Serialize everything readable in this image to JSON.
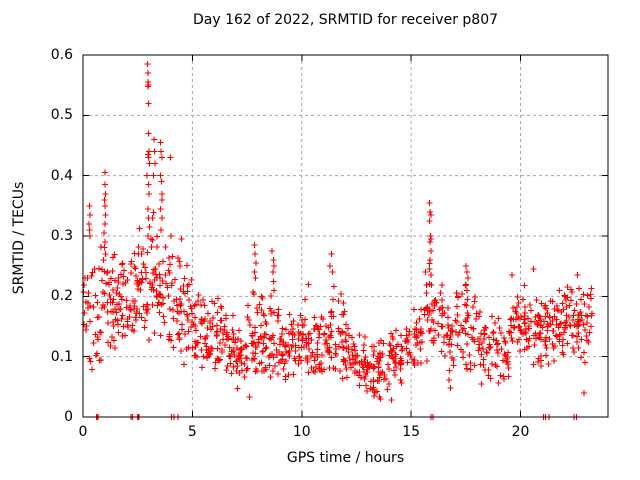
{
  "title": "Day 162 of 2022, SRMTID for receiver p807",
  "chart_data": {
    "type": "scatter",
    "title": "Day 162 of 2022, SRMTID for receiver p807",
    "xlabel": "GPS time / hours",
    "ylabel": "SRMTID / TECUs",
    "xlim": [
      0,
      24
    ],
    "ylim": [
      0,
      0.6
    ],
    "x_ticks": [
      0,
      5,
      10,
      15,
      20
    ],
    "x_tick_labels": [
      "0",
      "5",
      "10",
      "15",
      "20"
    ],
    "y_ticks": [
      0,
      0.1,
      0.2,
      0.3,
      0.4,
      0.5,
      0.6
    ],
    "y_tick_labels": [
      "0",
      "0.1",
      "0.2",
      "0.3",
      "0.4",
      "0.5",
      "0.6"
    ],
    "grid": true,
    "legend": "none",
    "marker": "plus",
    "marker_color": "#ff0000",
    "grid_color": "#a6a6a6",
    "axis_color": "#000000",
    "series_name": "SRMTID",
    "seed": 20220162,
    "density_bins_format": [
      "x_start_hours",
      "x_end_hours",
      "point_count",
      "y_min_TECUs",
      "y_max_TECUs"
    ],
    "density_bins": [
      [
        0.0,
        0.5,
        22,
        0.07,
        0.33
      ],
      [
        0.5,
        1.0,
        26,
        0.08,
        0.3
      ],
      [
        1.0,
        1.5,
        30,
        0.1,
        0.3
      ],
      [
        1.5,
        2.0,
        30,
        0.1,
        0.29
      ],
      [
        2.0,
        2.5,
        30,
        0.08,
        0.3
      ],
      [
        2.5,
        3.0,
        30,
        0.13,
        0.33
      ],
      [
        3.0,
        3.5,
        30,
        0.12,
        0.35
      ],
      [
        3.5,
        4.0,
        28,
        0.1,
        0.32
      ],
      [
        4.0,
        4.5,
        28,
        0.08,
        0.3
      ],
      [
        4.5,
        5.0,
        26,
        0.07,
        0.28
      ],
      [
        5.0,
        5.5,
        26,
        0.07,
        0.23
      ],
      [
        5.5,
        6.0,
        28,
        0.06,
        0.21
      ],
      [
        6.0,
        6.5,
        28,
        0.07,
        0.2
      ],
      [
        6.5,
        7.0,
        28,
        0.06,
        0.19
      ],
      [
        7.0,
        7.5,
        28,
        0.04,
        0.18
      ],
      [
        7.5,
        8.0,
        28,
        0.05,
        0.22
      ],
      [
        8.0,
        8.5,
        28,
        0.06,
        0.21
      ],
      [
        8.5,
        9.0,
        28,
        0.05,
        0.22
      ],
      [
        9.0,
        9.5,
        28,
        0.05,
        0.18
      ],
      [
        9.5,
        10.0,
        28,
        0.06,
        0.2
      ],
      [
        10.0,
        10.5,
        28,
        0.06,
        0.21
      ],
      [
        10.5,
        11.0,
        28,
        0.05,
        0.2
      ],
      [
        11.0,
        11.5,
        28,
        0.06,
        0.22
      ],
      [
        11.5,
        12.0,
        28,
        0.06,
        0.21
      ],
      [
        12.0,
        12.5,
        27,
        0.05,
        0.18
      ],
      [
        12.5,
        13.0,
        26,
        0.04,
        0.16
      ],
      [
        13.0,
        13.5,
        26,
        0.03,
        0.14
      ],
      [
        13.5,
        14.0,
        26,
        0.03,
        0.14
      ],
      [
        14.0,
        14.5,
        26,
        0.04,
        0.16
      ],
      [
        14.5,
        15.0,
        26,
        0.05,
        0.18
      ],
      [
        15.0,
        15.5,
        24,
        0.06,
        0.2
      ],
      [
        15.5,
        16.0,
        26,
        0.08,
        0.28
      ],
      [
        16.0,
        16.5,
        26,
        0.08,
        0.25
      ],
      [
        16.5,
        17.0,
        24,
        0.05,
        0.22
      ],
      [
        17.0,
        17.5,
        24,
        0.08,
        0.24
      ],
      [
        17.5,
        18.0,
        24,
        0.06,
        0.23
      ],
      [
        18.0,
        18.5,
        24,
        0.05,
        0.2
      ],
      [
        18.5,
        19.0,
        24,
        0.05,
        0.18
      ],
      [
        19.0,
        19.5,
        22,
        0.04,
        0.16
      ],
      [
        19.5,
        20.0,
        26,
        0.08,
        0.22
      ],
      [
        20.0,
        20.5,
        28,
        0.1,
        0.23
      ],
      [
        20.5,
        21.0,
        28,
        0.07,
        0.23
      ],
      [
        21.0,
        21.5,
        28,
        0.08,
        0.22
      ],
      [
        21.5,
        22.0,
        28,
        0.09,
        0.23
      ],
      [
        22.0,
        22.5,
        28,
        0.1,
        0.23
      ],
      [
        22.5,
        23.0,
        28,
        0.08,
        0.23
      ],
      [
        23.0,
        23.3,
        14,
        0.1,
        0.23
      ]
    ],
    "notable_points": [
      [
        0.28,
        0.32
      ],
      [
        0.3,
        0.35
      ],
      [
        0.3,
        0.31
      ],
      [
        0.32,
        0.335
      ],
      [
        0.33,
        0.3
      ],
      [
        0.97,
        0.305
      ],
      [
        0.98,
        0.36
      ],
      [
        1.0,
        0.405
      ],
      [
        1.0,
        0.385
      ],
      [
        1.0,
        0.35
      ],
      [
        1.0,
        0.32
      ],
      [
        1.02,
        0.37
      ],
      [
        1.03,
        0.335
      ],
      [
        1.0,
        0.29
      ],
      [
        1.02,
        0.27
      ],
      [
        2.93,
        0.4
      ],
      [
        2.95,
        0.585
      ],
      [
        2.96,
        0.57
      ],
      [
        2.96,
        0.345
      ],
      [
        2.97,
        0.555
      ],
      [
        2.97,
        0.435
      ],
      [
        2.98,
        0.548
      ],
      [
        2.98,
        0.3
      ],
      [
        2.99,
        0.47
      ],
      [
        3.0,
        0.55
      ],
      [
        3.0,
        0.52
      ],
      [
        3.0,
        0.43
      ],
      [
        3.0,
        0.385
      ],
      [
        3.0,
        0.33
      ],
      [
        3.02,
        0.44
      ],
      [
        3.02,
        0.37
      ],
      [
        3.04,
        0.315
      ],
      [
        3.05,
        0.42
      ],
      [
        3.22,
        0.4
      ],
      [
        3.25,
        0.46
      ],
      [
        3.27,
        0.44
      ],
      [
        3.3,
        0.42
      ],
      [
        3.55,
        0.455
      ],
      [
        3.55,
        0.4
      ],
      [
        3.55,
        0.345
      ],
      [
        3.57,
        0.44
      ],
      [
        3.57,
        0.31
      ],
      [
        3.58,
        0.39
      ],
      [
        3.6,
        0.43
      ],
      [
        3.6,
        0.37
      ],
      [
        3.6,
        0.33
      ],
      [
        3.62,
        0.36
      ],
      [
        4.0,
        0.43
      ],
      [
        4.02,
        0.3
      ],
      [
        4.5,
        0.295
      ],
      [
        7.6,
        0.033
      ],
      [
        7.83,
        0.24
      ],
      [
        7.85,
        0.285
      ],
      [
        7.87,
        0.27
      ],
      [
        7.88,
        0.23
      ],
      [
        7.9,
        0.255
      ],
      [
        8.65,
        0.275
      ],
      [
        8.68,
        0.24
      ],
      [
        8.7,
        0.26
      ],
      [
        8.7,
        0.225
      ],
      [
        8.72,
        0.25
      ],
      [
        8.73,
        0.21
      ],
      [
        10.3,
        0.22
      ],
      [
        11.3,
        0.25
      ],
      [
        11.35,
        0.27
      ],
      [
        11.4,
        0.24
      ],
      [
        13.3,
        0.035
      ],
      [
        13.6,
        0.03
      ],
      [
        14.1,
        0.028
      ],
      [
        15.85,
        0.355
      ],
      [
        15.85,
        0.325
      ],
      [
        15.85,
        0.245
      ],
      [
        15.86,
        0.29
      ],
      [
        15.87,
        0.34
      ],
      [
        15.87,
        0.26
      ],
      [
        15.88,
        0.3
      ],
      [
        15.9,
        0.335
      ],
      [
        15.9,
        0.295
      ],
      [
        15.9,
        0.275
      ],
      [
        15.9,
        0.235
      ],
      [
        16.8,
        0.048
      ],
      [
        17.5,
        0.25
      ],
      [
        17.5,
        0.22
      ],
      [
        17.52,
        0.185
      ],
      [
        17.55,
        0.24
      ],
      [
        17.55,
        0.21
      ],
      [
        17.58,
        0.195
      ],
      [
        17.6,
        0.23
      ],
      [
        19.6,
        0.235
      ],
      [
        20.6,
        0.245
      ],
      [
        22.6,
        0.235
      ],
      [
        22.9,
        0.04
      ]
    ],
    "zero_value_points_x": [
      0.62,
      0.65,
      0.68,
      2.2,
      2.27,
      2.48,
      2.52,
      2.56,
      4.05,
      4.15,
      4.35,
      15.9,
      16.0,
      21.05,
      21.15,
      21.3,
      22.45,
      22.55
    ]
  }
}
